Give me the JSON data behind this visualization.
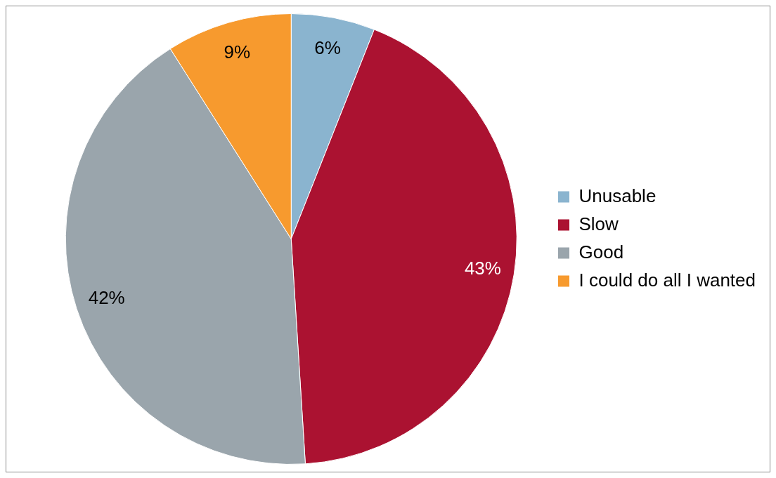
{
  "chart_data": {
    "type": "pie",
    "categories": [
      "Unusable",
      "Slow",
      "Good",
      "I could do all I wanted"
    ],
    "values": [
      6,
      43,
      42,
      9
    ],
    "colors": [
      "#8ab4cf",
      "#ab1231",
      "#9aa5ac",
      "#f79a2e"
    ],
    "value_labels": [
      "6%",
      "43%",
      "42%",
      "9%"
    ],
    "legend": "right"
  }
}
